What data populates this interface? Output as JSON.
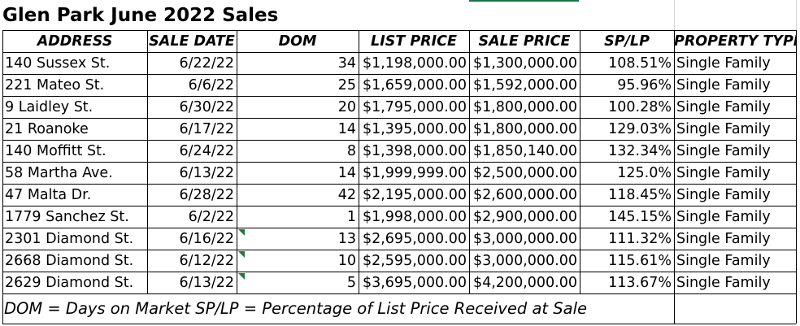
{
  "title": "Glen Park June 2022 Sales",
  "columns": [
    "ADDRESS",
    "SALE DATE",
    "DOM",
    "LIST PRICE",
    "SALE PRICE",
    "SP/LP",
    "PROPERTY TYPE"
  ],
  "rows": [
    {
      "address": "140 Sussex St.",
      "sale_date": "6/22/22",
      "dom": "34",
      "list_price": "$1,198,000.00",
      "sale_price": "$1,300,000.00",
      "sp_lp": "108.51%",
      "property_type": "Single Family"
    },
    {
      "address": "221 Mateo St.",
      "sale_date": "6/6/22",
      "dom": "25",
      "list_price": "$1,659,000.00",
      "sale_price": "$1,592,000.00",
      "sp_lp": "95.96%",
      "property_type": "Single Family"
    },
    {
      "address": "9 Laidley St.",
      "sale_date": "6/30/22",
      "dom": "20",
      "list_price": "$1,795,000.00",
      "sale_price": "$1,800,000.00",
      "sp_lp": "100.28%",
      "property_type": "Single Family"
    },
    {
      "address": "21 Roanoke",
      "sale_date": "6/17/22",
      "dom": "14",
      "list_price": "$1,395,000.00",
      "sale_price": "$1,800,000.00",
      "sp_lp": "129.03%",
      "property_type": "Single Family"
    },
    {
      "address": "140 Moffitt St.",
      "sale_date": "6/24/22",
      "dom": "8",
      "list_price": "$1,398,000.00",
      "sale_price": "$1,850,140.00",
      "sp_lp": "132.34%",
      "property_type": "Single Family"
    },
    {
      "address": "58 Martha Ave.",
      "sale_date": "6/13/22",
      "dom": "14",
      "list_price": "$1,999,999.00",
      "sale_price": "$2,500,000.00",
      "sp_lp": "125.0%",
      "property_type": "Single Family"
    },
    {
      "address": "47 Malta Dr.",
      "sale_date": "6/28/22",
      "dom": "42",
      "list_price": "$2,195,000.00",
      "sale_price": "$2,600,000.00",
      "sp_lp": "118.45%",
      "property_type": "Single Family"
    },
    {
      "address": "1779 Sanchez St.",
      "sale_date": "6/2/22",
      "dom": "1",
      "list_price": "$1,998,000.00",
      "sale_price": "$2,900,000.00",
      "sp_lp": "145.15%",
      "property_type": "Single Family"
    },
    {
      "address": "2301 Diamond St.",
      "sale_date": "6/16/22",
      "dom": "13",
      "list_price": "$2,695,000.00",
      "sale_price": "$3,000,000.00",
      "sp_lp": "111.32%",
      "property_type": "Single Family",
      "flag": true
    },
    {
      "address": "2668 Diamond St.",
      "sale_date": "6/12/22",
      "dom": "10",
      "list_price": "$2,595,000.00",
      "sale_price": "$3,000,000.00",
      "sp_lp": "115.61%",
      "property_type": "Single Family",
      "flag": true
    },
    {
      "address": "2629 Diamond St.",
      "sale_date": "6/13/22",
      "dom": "5",
      "list_price": "$3,695,000.00",
      "sale_price": "$4,200,000.00",
      "sp_lp": "113.67%",
      "property_type": "Single Family",
      "flag": true
    }
  ],
  "footer": "DOM = Days on Market    SP/LP = Percentage of List Price Received at Sale",
  "colors": {
    "grid": "#000000",
    "flag_green": "#1e7b34",
    "selection_green": "#217346"
  }
}
